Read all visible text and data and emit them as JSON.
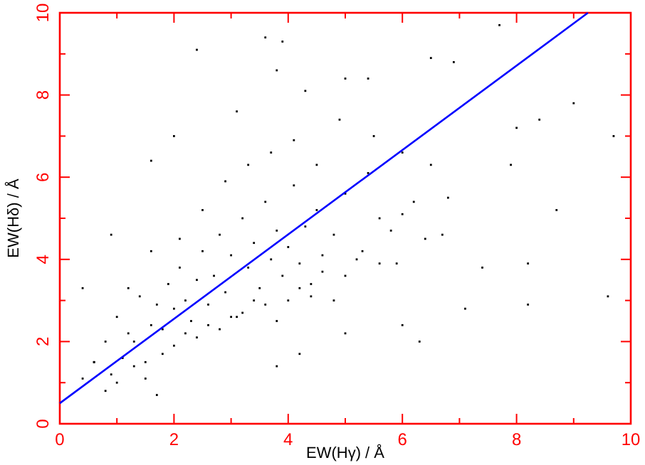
{
  "chart_data": {
    "type": "scatter",
    "xlabel": "EW(Hγ) / Å",
    "ylabel": "EW(Hδ) / Å",
    "xlim": [
      0,
      10
    ],
    "ylim": [
      0,
      10
    ],
    "xticks": [
      0,
      {
        "value": 1,
        "label": null
      },
      2,
      {
        "value": 3,
        "label": null
      },
      4,
      {
        "value": 5,
        "label": null
      },
      6,
      {
        "value": 7,
        "label": null
      },
      8,
      {
        "value": 9,
        "label": null
      },
      10
    ],
    "yticks": [
      0,
      {
        "value": 1,
        "label": null
      },
      2,
      {
        "value": 3,
        "label": null
      },
      4,
      {
        "value": 5,
        "label": null
      },
      6,
      {
        "value": 7,
        "label": null
      },
      8,
      {
        "value": 9,
        "label": null
      },
      10
    ],
    "grid": false,
    "series": [
      {
        "marker": "square",
        "color": "#000000",
        "x": [
          0.4,
          0.6,
          0.8,
          0.9,
          1.0,
          1.1,
          1.2,
          1.3,
          1.4,
          1.5,
          1.6,
          1.7,
          1.8,
          1.9,
          2.0,
          2.1,
          2.2,
          2.3,
          2.4,
          2.5,
          2.6,
          2.7,
          2.8,
          2.9,
          3.0,
          3.1,
          3.2,
          3.3,
          3.4,
          3.5,
          3.6,
          3.7,
          3.8,
          3.9,
          4.0,
          4.1,
          4.2,
          4.3,
          4.4,
          4.5,
          4.6,
          4.8,
          5.0,
          5.2,
          5.4,
          5.6,
          5.8,
          6.0,
          6.2,
          6.5,
          1.0,
          1.3,
          1.5,
          1.8,
          2.0,
          2.2,
          2.4,
          2.6,
          2.8,
          3.0,
          3.2,
          3.4,
          3.6,
          3.8,
          4.0,
          4.2,
          4.4,
          4.6,
          4.8,
          5.0,
          5.3,
          5.6,
          6.0,
          6.4,
          6.8,
          1.2,
          1.6,
          2.1,
          2.5,
          2.9,
          3.3,
          3.7,
          4.1,
          4.5,
          4.9,
          5.5,
          0.4,
          0.9,
          1.6,
          2.0,
          2.4,
          3.1,
          3.6,
          3.9,
          3.8,
          4.3,
          5.0,
          5.4,
          6.5,
          6.9,
          7.7,
          7.9,
          8.0,
          8.4,
          9.0,
          9.7,
          9.6,
          8.2,
          7.1,
          8.7,
          8.2,
          6.3,
          6.0,
          0.6,
          0.8,
          1.7,
          3.8,
          5.0,
          4.2,
          7.4,
          6.7,
          5.9
        ],
        "values": [
          1.1,
          1.5,
          2.0,
          1.2,
          2.6,
          1.6,
          2.2,
          2.0,
          3.1,
          1.5,
          2.4,
          2.9,
          2.3,
          3.4,
          2.8,
          3.8,
          3.0,
          2.5,
          3.5,
          4.2,
          2.9,
          3.6,
          4.6,
          3.2,
          4.1,
          2.6,
          5.0,
          3.8,
          4.4,
          3.3,
          5.4,
          4.0,
          4.7,
          3.6,
          4.3,
          5.8,
          3.9,
          4.8,
          3.4,
          5.2,
          4.1,
          4.6,
          5.6,
          4.0,
          6.1,
          5.0,
          4.7,
          6.6,
          5.4,
          6.3,
          1.0,
          1.4,
          1.1,
          1.7,
          1.9,
          2.2,
          2.1,
          2.4,
          2.3,
          2.6,
          2.7,
          3.0,
          2.9,
          2.5,
          3.0,
          3.3,
          3.1,
          3.7,
          3.0,
          3.6,
          4.2,
          3.9,
          5.1,
          4.5,
          5.5,
          3.3,
          4.2,
          4.5,
          5.2,
          5.9,
          6.3,
          6.6,
          6.9,
          6.3,
          7.4,
          7.0,
          3.3,
          4.6,
          6.4,
          7.0,
          9.1,
          7.6,
          9.4,
          9.3,
          8.6,
          8.1,
          8.4,
          8.4,
          8.9,
          8.8,
          9.7,
          6.3,
          7.2,
          7.4,
          7.8,
          7.0,
          3.1,
          2.9,
          2.8,
          5.2,
          3.9,
          2.0,
          2.4,
          1.5,
          0.8,
          0.7,
          1.4,
          2.2,
          1.7,
          3.8,
          4.6,
          3.9
        ]
      },
      {
        "type": "line",
        "color": "#0000ff",
        "x": [
          0,
          9.25
        ],
        "values": [
          0.5,
          10
        ]
      }
    ]
  }
}
